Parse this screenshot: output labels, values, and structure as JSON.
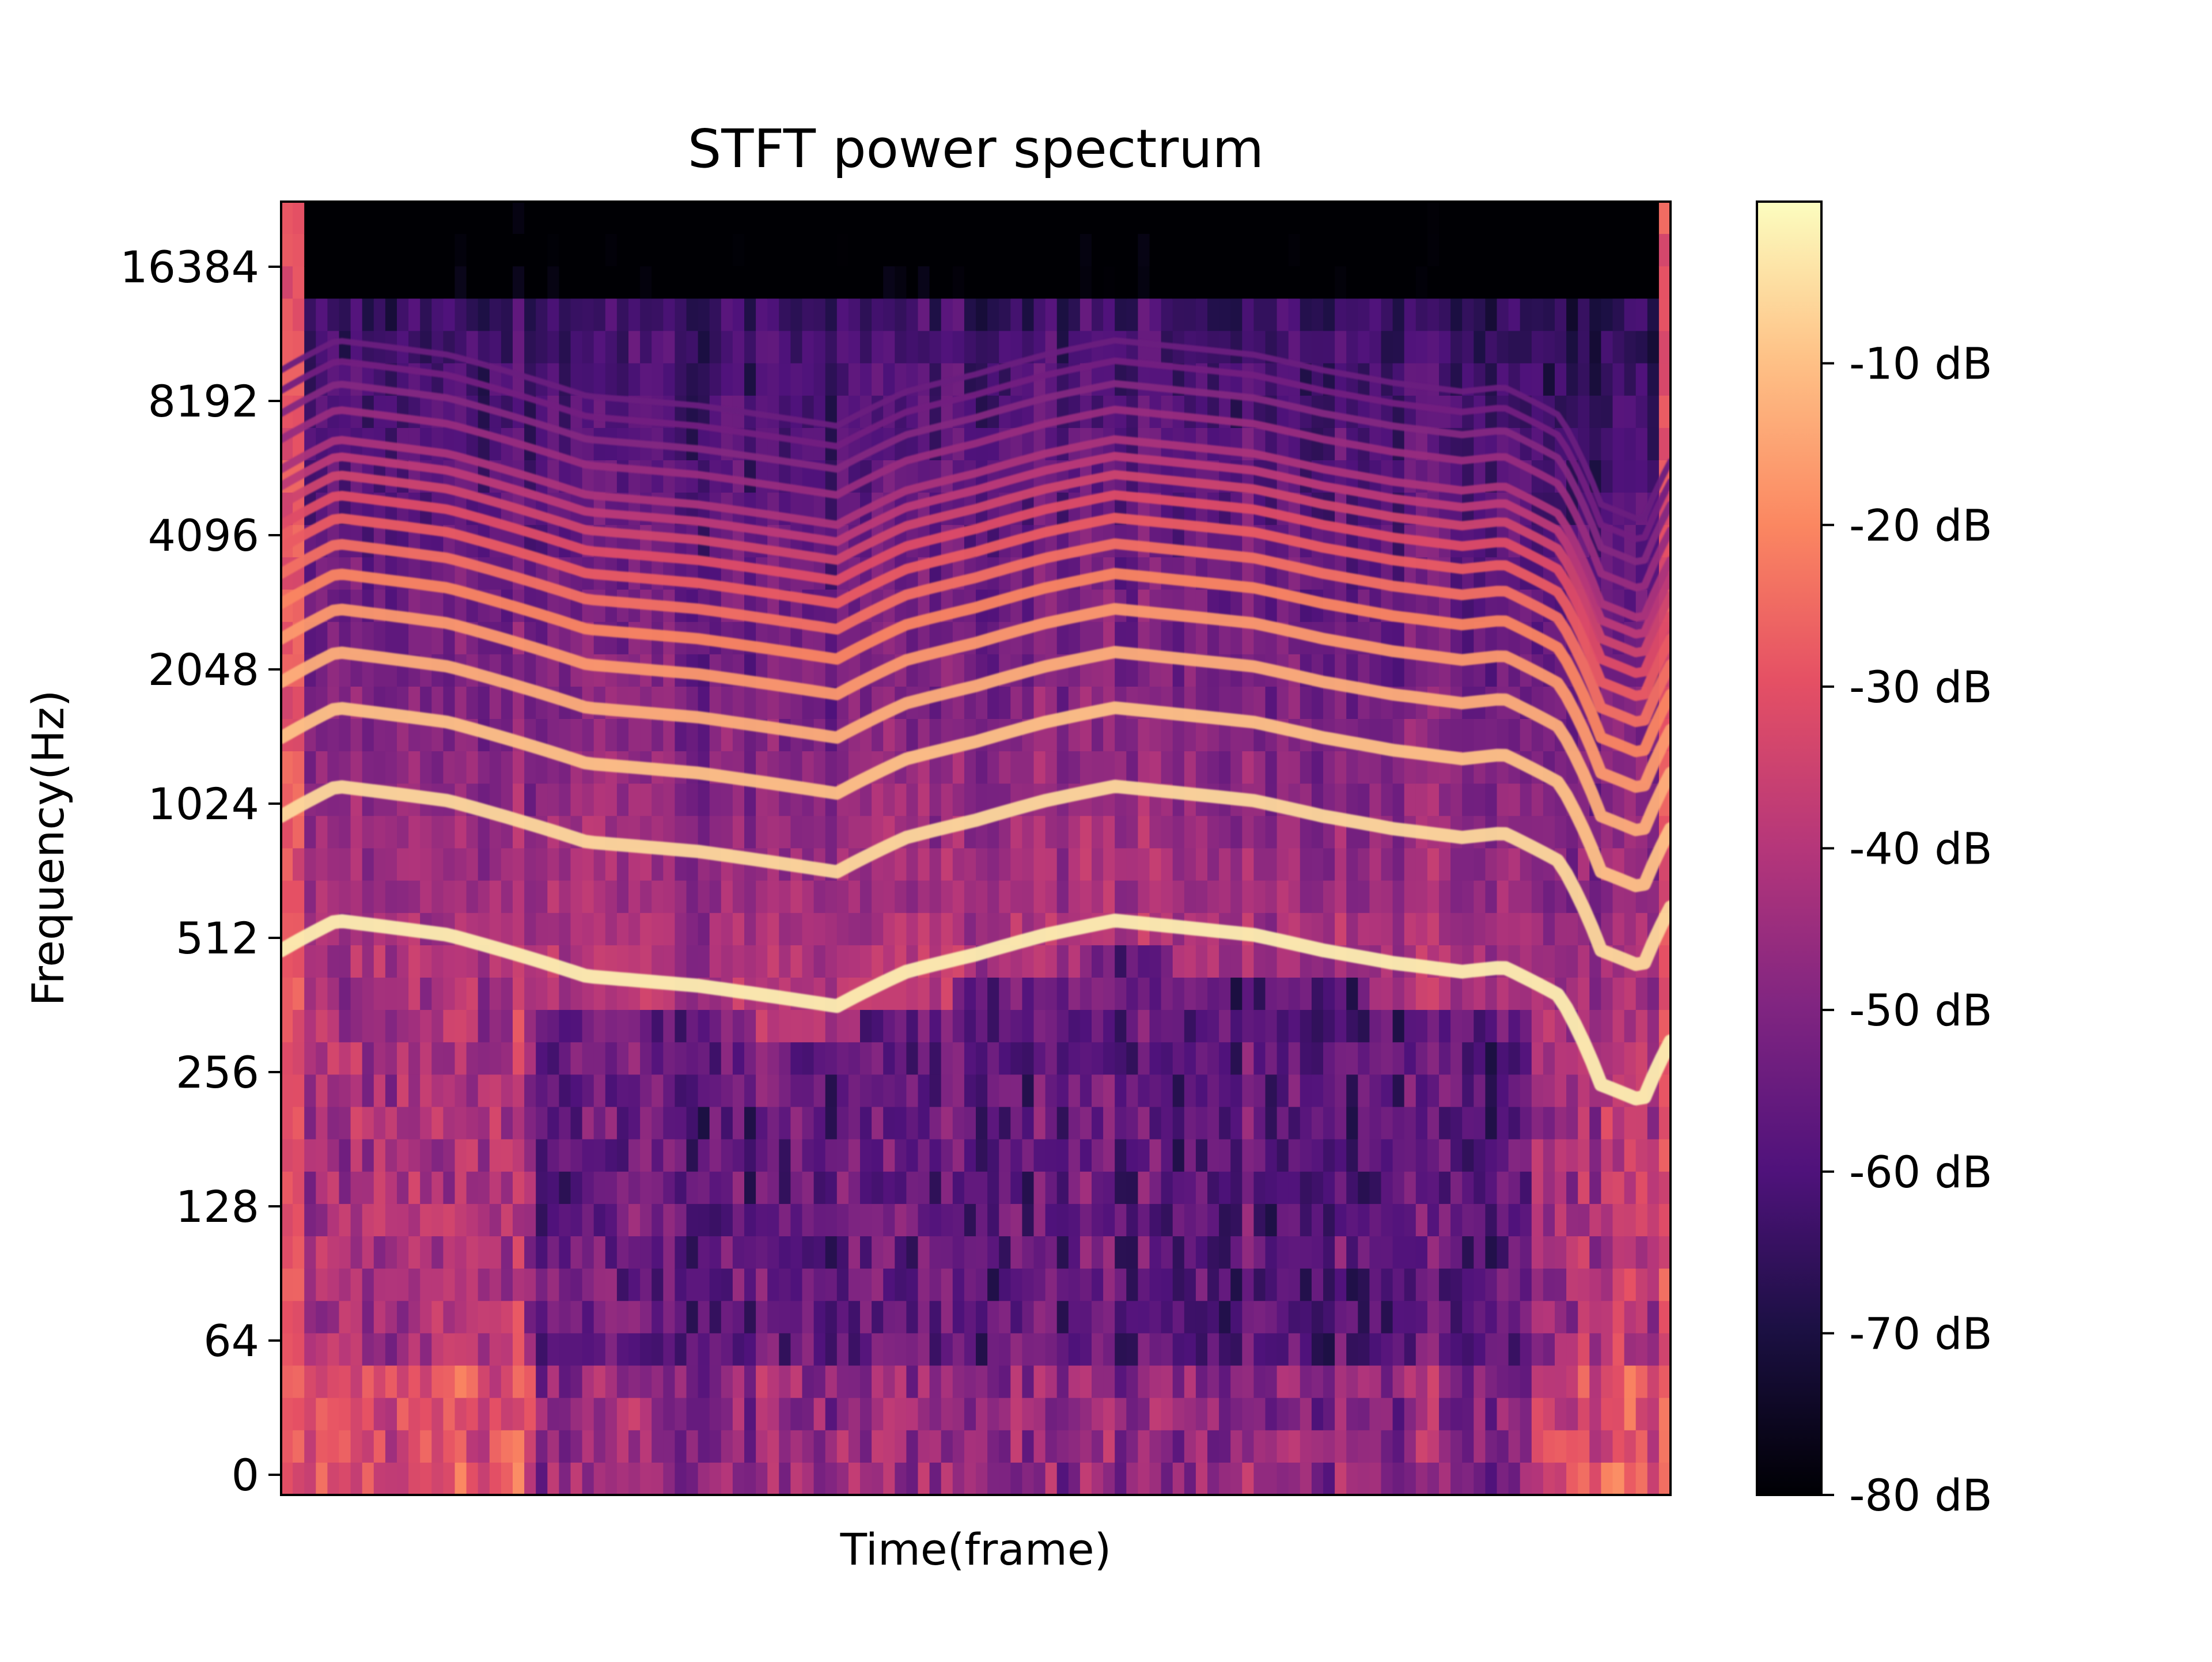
{
  "chart_data": {
    "type": "heatmap",
    "title": "STFT power spectrum",
    "xlabel": "Time(frame)",
    "ylabel": "Frequency(Hz)",
    "y_scale": "symlog (base 2)",
    "y_ticks": [
      0,
      64,
      128,
      256,
      512,
      1024,
      2048,
      4096,
      8192,
      16384
    ],
    "y_tick_labels": [
      "0",
      "64",
      "128",
      "256",
      "512",
      "1024",
      "2048",
      "4096",
      "8192",
      "16384"
    ],
    "ylim": [
      0,
      22050
    ],
    "x_ticks_shown": false,
    "colormap": "magma",
    "colorbar": {
      "range": [
        -80,
        0
      ],
      "unit": "dB",
      "tick_values": [
        -10,
        -20,
        -30,
        -40,
        -50,
        -60,
        -70,
        -80
      ],
      "tick_labels": [
        "-10 dB",
        "-20 dB",
        "-30 dB",
        "-40 dB",
        "-50 dB",
        "-60 dB",
        "-70 dB",
        "-80 dB"
      ]
    },
    "harmonic_tracks_hz": {
      "time_fraction": [
        0.0,
        0.04,
        0.12,
        0.22,
        0.3,
        0.4,
        0.45,
        0.5,
        0.55,
        0.6,
        0.7,
        0.75,
        0.8,
        0.85,
        0.88,
        0.92,
        0.95,
        0.98,
        1.0
      ],
      "fundamental_hz": [
        480,
        560,
        520,
        420,
        400,
        360,
        430,
        470,
        520,
        560,
        520,
        480,
        450,
        430,
        440,
        380,
        240,
        220,
        300
      ],
      "harmonic_numbers": [
        1,
        2,
        3,
        4,
        5,
        6,
        7,
        8,
        9,
        10,
        11,
        12,
        14,
        16,
        18,
        20
      ]
    }
  }
}
